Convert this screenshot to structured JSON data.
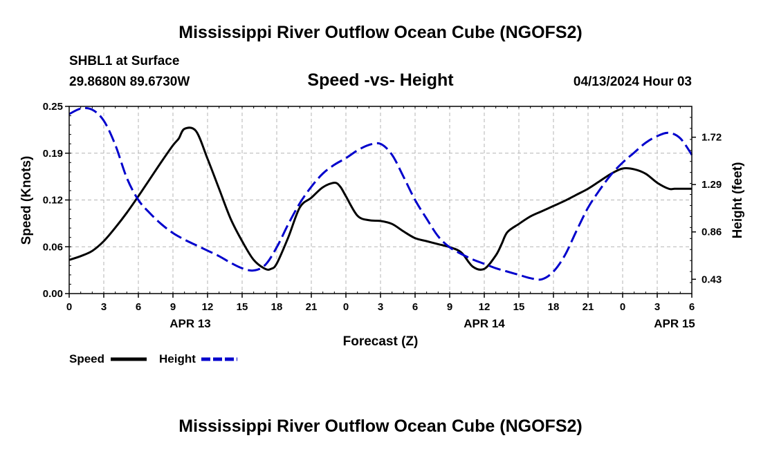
{
  "page": {
    "top_title": "Mississippi River Outflow Ocean Cube (NGOFS2)",
    "bottom_title": "Mississippi River Outflow Ocean Cube (NGOFS2)"
  },
  "chart_data": {
    "type": "line",
    "title": "Speed -vs- Height",
    "station": "SHBL1 at Surface",
    "coordinates": "29.8680N  89.6730W",
    "datetime": "04/13/2024 Hour 03",
    "xlabel": "Forecast (Z)",
    "ylabel_left": "Speed (Knots)",
    "ylabel_right": "Height (feet)",
    "x_range_hours": [
      0,
      54
    ],
    "x_ticks": [
      "0",
      "3",
      "6",
      "9",
      "12",
      "15",
      "18",
      "21",
      "0",
      "3",
      "6",
      "9",
      "12",
      "15",
      "18",
      "21",
      "0",
      "3",
      "6"
    ],
    "date_labels": [
      {
        "label": "APR 13",
        "hour": 10.5
      },
      {
        "label": "APR 14",
        "hour": 36
      },
      {
        "label": "APR 15",
        "hour": 52.5
      }
    ],
    "ylim_left": [
      0,
      0.25
    ],
    "yticks_left": [
      "0.00",
      "0.06",
      "0.12",
      "0.19",
      "0.25"
    ],
    "ylim_right": [
      0.3,
      2.0
    ],
    "yticks_right": [
      {
        "label": "0.43",
        "value": 0.43
      },
      {
        "label": "0.86",
        "value": 0.86
      },
      {
        "label": "1.29",
        "value": 1.29
      },
      {
        "label": "1.72",
        "value": 1.72
      }
    ],
    "grid": true,
    "legend": {
      "position": "bottom-left",
      "items": [
        "Speed",
        "Height"
      ]
    },
    "series": [
      {
        "name": "Speed",
        "axis": "left",
        "color": "#000000",
        "dash": "solid",
        "x": [
          0,
          1,
          2,
          3,
          4,
          5,
          6,
          7,
          8,
          9,
          9.5,
          10,
          11,
          12,
          13,
          14,
          15,
          16,
          17,
          17.5,
          18,
          19,
          20,
          21,
          22,
          23,
          23.5,
          24,
          25,
          26,
          27,
          28,
          29,
          30,
          31,
          32,
          33,
          34,
          35,
          36,
          37,
          37.5,
          38,
          39,
          40,
          41,
          42,
          43,
          44,
          45,
          46,
          47,
          48,
          49,
          50,
          51,
          52,
          52.5,
          53,
          54
        ],
        "values": [
          0.045,
          0.05,
          0.057,
          0.07,
          0.088,
          0.108,
          0.13,
          0.153,
          0.176,
          0.198,
          0.207,
          0.22,
          0.217,
          0.18,
          0.14,
          0.1,
          0.07,
          0.045,
          0.033,
          0.033,
          0.04,
          0.075,
          0.115,
          0.128,
          0.142,
          0.148,
          0.143,
          0.13,
          0.104,
          0.098,
          0.097,
          0.093,
          0.083,
          0.074,
          0.07,
          0.066,
          0.062,
          0.055,
          0.036,
          0.033,
          0.051,
          0.066,
          0.082,
          0.093,
          0.103,
          0.11,
          0.117,
          0.124,
          0.132,
          0.14,
          0.15,
          0.16,
          0.167,
          0.166,
          0.16,
          0.148,
          0.14,
          0.14,
          0.14,
          0.14
        ]
      },
      {
        "name": "Height",
        "axis": "right",
        "color": "#0000cc",
        "dash": "dashed",
        "x": [
          0,
          1,
          2,
          3,
          4,
          5,
          6,
          7,
          8,
          9,
          10,
          11,
          12,
          13,
          14,
          15,
          16,
          17,
          18,
          19,
          20,
          21,
          22,
          23,
          24,
          25,
          26,
          27,
          28,
          29,
          30,
          31,
          32,
          33,
          34,
          35,
          36,
          37,
          38,
          39,
          40,
          41,
          42,
          43,
          44,
          45,
          46,
          47,
          48,
          49,
          50,
          51,
          52,
          53,
          54
        ],
        "values": [
          1.93,
          1.98,
          1.97,
          1.87,
          1.65,
          1.35,
          1.15,
          1.03,
          0.93,
          0.85,
          0.79,
          0.74,
          0.69,
          0.64,
          0.58,
          0.53,
          0.51,
          0.56,
          0.72,
          0.93,
          1.12,
          1.27,
          1.39,
          1.47,
          1.53,
          1.6,
          1.65,
          1.66,
          1.56,
          1.36,
          1.15,
          0.98,
          0.82,
          0.72,
          0.66,
          0.61,
          0.57,
          0.53,
          0.5,
          0.47,
          0.44,
          0.43,
          0.5,
          0.65,
          0.87,
          1.08,
          1.24,
          1.38,
          1.49,
          1.58,
          1.67,
          1.73,
          1.76,
          1.71,
          1.56
        ]
      }
    ]
  }
}
